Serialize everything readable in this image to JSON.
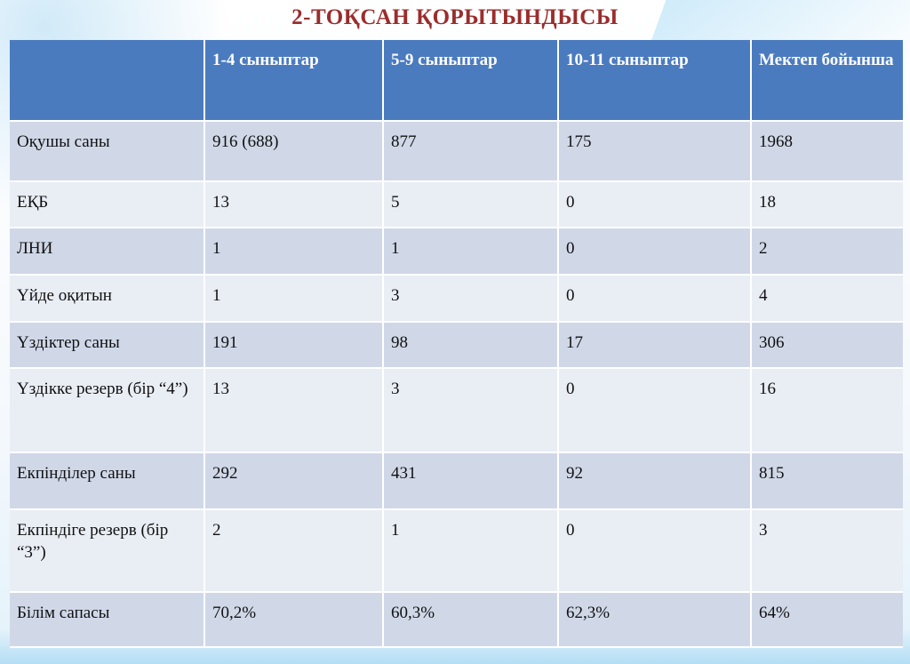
{
  "slide": {
    "title": "2-ТОҚСАН ҚОРЫТЫНДЫСЫ"
  },
  "table": {
    "headers": [
      "",
      "1-4 сыныптар",
      "5-9 сыныптар",
      "10-11 сыныптар",
      "Мектеп бойынша"
    ],
    "rows": [
      [
        "Оқушы саны",
        "916 (688)",
        "877",
        "175",
        "1968"
      ],
      [
        "ЕҚБ",
        "13",
        "5",
        "0",
        "18"
      ],
      [
        "ЛНИ",
        "1",
        "1",
        "0",
        "2"
      ],
      [
        "Үйде оқитын",
        "1",
        "3",
        "0",
        "4"
      ],
      [
        "Үздіктер саны",
        "191",
        "98",
        "17",
        "306"
      ],
      [
        "Үздікке резерв (бір “4”)",
        "13",
        "3",
        "0",
        "16"
      ],
      [
        "Екпінділер саны",
        "292",
        "431",
        "92",
        "815"
      ],
      [
        "Екпіндіге резерв (бір “3”)",
        "2",
        "1",
        "0",
        "3"
      ],
      [
        "Білім сапасы",
        "70,2%",
        "60,3%",
        "62,3%",
        "64%"
      ]
    ]
  },
  "colors": {
    "title": "#9b2d2d",
    "header_bg": "#4b7bbf",
    "row_odd": "#d0d8e8",
    "row_even": "#e9edf4"
  }
}
